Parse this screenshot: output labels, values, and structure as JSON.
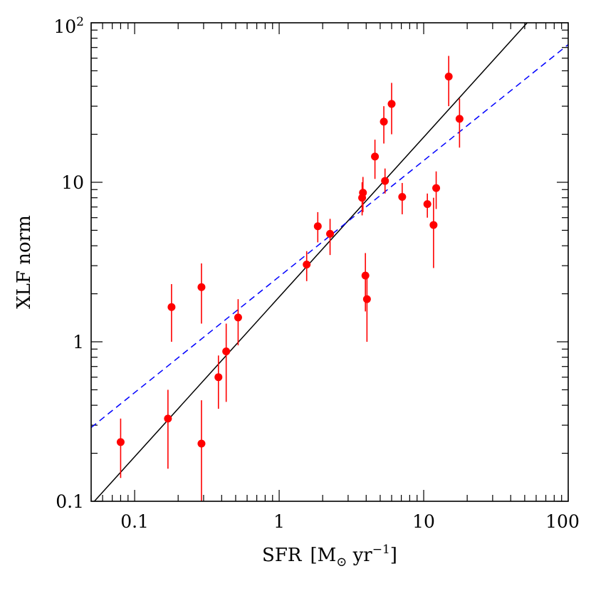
{
  "chart_data": {
    "type": "scatter",
    "xscale": "log",
    "yscale": "log",
    "xlim": [
      0.05,
      100
    ],
    "ylim": [
      0.1,
      100
    ],
    "xlabel_main": "SFR",
    "xlabel_unit": "[M",
    "xlabel_sub": "⊙",
    "xlabel_rest": " yr",
    "xlabel_exp": "−1",
    "xlabel_close": "]",
    "ylabel": "XLF norm",
    "xticks": [
      {
        "value": 0.1,
        "label": "0.1"
      },
      {
        "value": 1,
        "label": "1"
      },
      {
        "value": 10,
        "label": "10"
      },
      {
        "value": 100,
        "label": "100"
      }
    ],
    "yticks": [
      {
        "value": 0.1,
        "label": "0.1"
      },
      {
        "value": 1,
        "label": "1"
      },
      {
        "value": 10,
        "label": "10"
      },
      {
        "value": 100,
        "label": "10",
        "exp": "2"
      }
    ],
    "series": [
      {
        "name": "data",
        "color": "#ff0000",
        "points": [
          {
            "x": 0.08,
            "y": 0.235,
            "ylo": 0.14,
            "yhi": 0.33
          },
          {
            "x": 0.17,
            "y": 0.33,
            "ylo": 0.16,
            "yhi": 0.5
          },
          {
            "x": 0.18,
            "y": 1.65,
            "ylo": 1.0,
            "yhi": 2.3
          },
          {
            "x": 0.29,
            "y": 2.2,
            "ylo": 1.3,
            "yhi": 3.1
          },
          {
            "x": 0.29,
            "y": 0.23,
            "ylo": 0.1,
            "yhi": 0.43
          },
          {
            "x": 0.38,
            "y": 0.6,
            "ylo": 0.38,
            "yhi": 0.82
          },
          {
            "x": 0.43,
            "y": 0.87,
            "ylo": 0.42,
            "yhi": 1.3
          },
          {
            "x": 0.52,
            "y": 1.42,
            "ylo": 0.95,
            "yhi": 1.85
          },
          {
            "x": 1.55,
            "y": 3.05,
            "ylo": 2.4,
            "yhi": 3.7
          },
          {
            "x": 1.85,
            "y": 5.3,
            "ylo": 4.2,
            "yhi": 6.5
          },
          {
            "x": 2.25,
            "y": 4.75,
            "ylo": 3.5,
            "yhi": 5.9
          },
          {
            "x": 3.75,
            "y": 8.0,
            "ylo": 6.2,
            "yhi": 10.0
          },
          {
            "x": 3.8,
            "y": 8.6,
            "ylo": 6.5,
            "yhi": 10.8
          },
          {
            "x": 3.95,
            "y": 2.6,
            "ylo": 1.55,
            "yhi": 3.6
          },
          {
            "x": 4.05,
            "y": 1.85,
            "ylo": 1.0,
            "yhi": 2.6
          },
          {
            "x": 4.6,
            "y": 14.5,
            "ylo": 10.5,
            "yhi": 18.5
          },
          {
            "x": 5.3,
            "y": 24.0,
            "ylo": 17.5,
            "yhi": 30.0
          },
          {
            "x": 5.4,
            "y": 10.2,
            "ylo": 8.5,
            "yhi": 12.2
          },
          {
            "x": 6.0,
            "y": 31.0,
            "ylo": 20.0,
            "yhi": 42.0
          },
          {
            "x": 7.1,
            "y": 8.1,
            "ylo": 6.3,
            "yhi": 9.9
          },
          {
            "x": 10.6,
            "y": 7.3,
            "ylo": 6.0,
            "yhi": 8.5
          },
          {
            "x": 11.7,
            "y": 5.4,
            "ylo": 2.9,
            "yhi": 8.0
          },
          {
            "x": 12.2,
            "y": 9.2,
            "ylo": 6.8,
            "yhi": 11.7
          },
          {
            "x": 14.9,
            "y": 46.0,
            "ylo": 30.0,
            "yhi": 62.0
          },
          {
            "x": 17.7,
            "y": 25.0,
            "ylo": 16.5,
            "yhi": 33.5
          }
        ]
      }
    ],
    "lines": [
      {
        "name": "fit-solid",
        "style": "solid",
        "color": "#000000",
        "x": [
          0.05,
          52
        ],
        "y": [
          0.095,
          100
        ]
      },
      {
        "name": "fit-dashed",
        "style": "dashed",
        "color": "#0000ff",
        "x": [
          0.05,
          100
        ],
        "y": [
          0.29,
          73
        ]
      }
    ]
  }
}
